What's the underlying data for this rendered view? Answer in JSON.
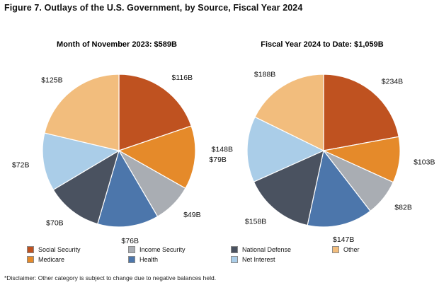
{
  "figure_title": "Figure 7. Outlays of the U.S. Government, by Source, Fiscal Year 2024",
  "colors": {
    "Social Security": "#bf5220",
    "Medicare": "#e58a2a",
    "Income Security": "#a9adb3",
    "Health": "#4c76ab",
    "National Defense": "#4a5260",
    "Net Interest": "#aacde8",
    "Other": "#f2bd7d"
  },
  "legend": {
    "items": [
      "Social Security",
      "Medicare",
      "Income Security",
      "Health",
      "National Defense",
      "Net Interest",
      "Other"
    ]
  },
  "footnote": "*Disclaimer: Other category is subject to change due to negative balances held.",
  "chart_data": [
    {
      "type": "pie",
      "title": "Month of November 2023: $589B",
      "slices": [
        {
          "name": "Social Security",
          "value": 116,
          "label": "$116B"
        },
        {
          "name": "Medicare",
          "value": 79,
          "label": "$79B"
        },
        {
          "name": "Income Security",
          "value": 49,
          "label": "$49B"
        },
        {
          "name": "Health",
          "value": 76,
          "label": "$76B"
        },
        {
          "name": "National Defense",
          "value": 70,
          "label": "$70B"
        },
        {
          "name": "Net Interest",
          "value": 72,
          "label": "$72B"
        },
        {
          "name": "Other",
          "value": 125,
          "label": "$125B"
        }
      ]
    },
    {
      "type": "pie",
      "title": "Fiscal Year 2024 to Date: $1,059B",
      "slices": [
        {
          "name": "Social Security",
          "value": 234,
          "label": "$234B"
        },
        {
          "name": "Medicare",
          "value": 103,
          "label": "$103B"
        },
        {
          "name": "Income Security",
          "value": 82,
          "label": "$82B"
        },
        {
          "name": "Health",
          "value": 147,
          "label": "$147B"
        },
        {
          "name": "National Defense",
          "value": 158,
          "label": "$158B"
        },
        {
          "name": "Net Interest",
          "value": 148,
          "label": "$148B"
        },
        {
          "name": "Other",
          "value": 188,
          "label": "$188B"
        }
      ]
    }
  ]
}
